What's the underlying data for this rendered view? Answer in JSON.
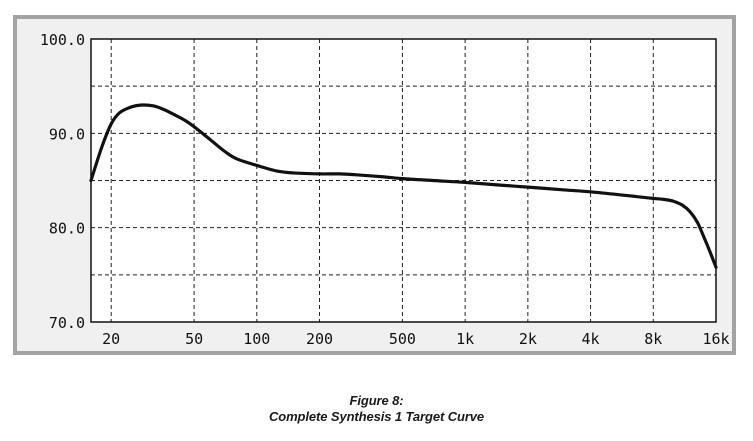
{
  "chart_data": {
    "type": "line",
    "title": "",
    "xlabel": "",
    "ylabel": "",
    "x_scale": "log",
    "x_ticks": [
      20,
      50,
      100,
      200,
      500,
      1000,
      2000,
      4000,
      8000,
      16000
    ],
    "x_tick_labels": [
      "20",
      "50",
      "100",
      "200",
      "500",
      "1k",
      "2k",
      "4k",
      "8k",
      "16k"
    ],
    "y_ticks": [
      70.0,
      80.0,
      90.0,
      100.0
    ],
    "y_tick_labels": [
      "70.0",
      "80.0",
      "90.0",
      "100.0"
    ],
    "ylim": [
      70.0,
      100.0
    ],
    "xlim": [
      16,
      16000
    ],
    "grid": true,
    "legend": "none",
    "line_color": "#111111",
    "series": [
      {
        "x": [
          16,
          18,
          20,
          22,
          25,
          28,
          32,
          36,
          40,
          45,
          50,
          60,
          70,
          80,
          100,
          125,
          150,
          200,
          250,
          300,
          400,
          500,
          700,
          1000,
          1500,
          2000,
          3000,
          4000,
          6000,
          8000,
          9000,
          10000,
          11000,
          12000,
          13000,
          14000,
          15000,
          16000
        ],
        "y": [
          85.0,
          88.5,
          91.0,
          92.2,
          92.8,
          93.0,
          92.9,
          92.5,
          92.0,
          91.4,
          90.7,
          89.3,
          88.1,
          87.3,
          86.6,
          86.0,
          85.8,
          85.7,
          85.7,
          85.6,
          85.4,
          85.2,
          85.0,
          84.8,
          84.5,
          84.3,
          84.0,
          83.8,
          83.4,
          83.1,
          83.0,
          82.8,
          82.4,
          81.7,
          80.6,
          79.0,
          77.4,
          75.8
        ]
      }
    ]
  },
  "caption": {
    "figure_label": "Figure 8:",
    "figure_title": "Complete Synthesis 1 Target Curve"
  }
}
